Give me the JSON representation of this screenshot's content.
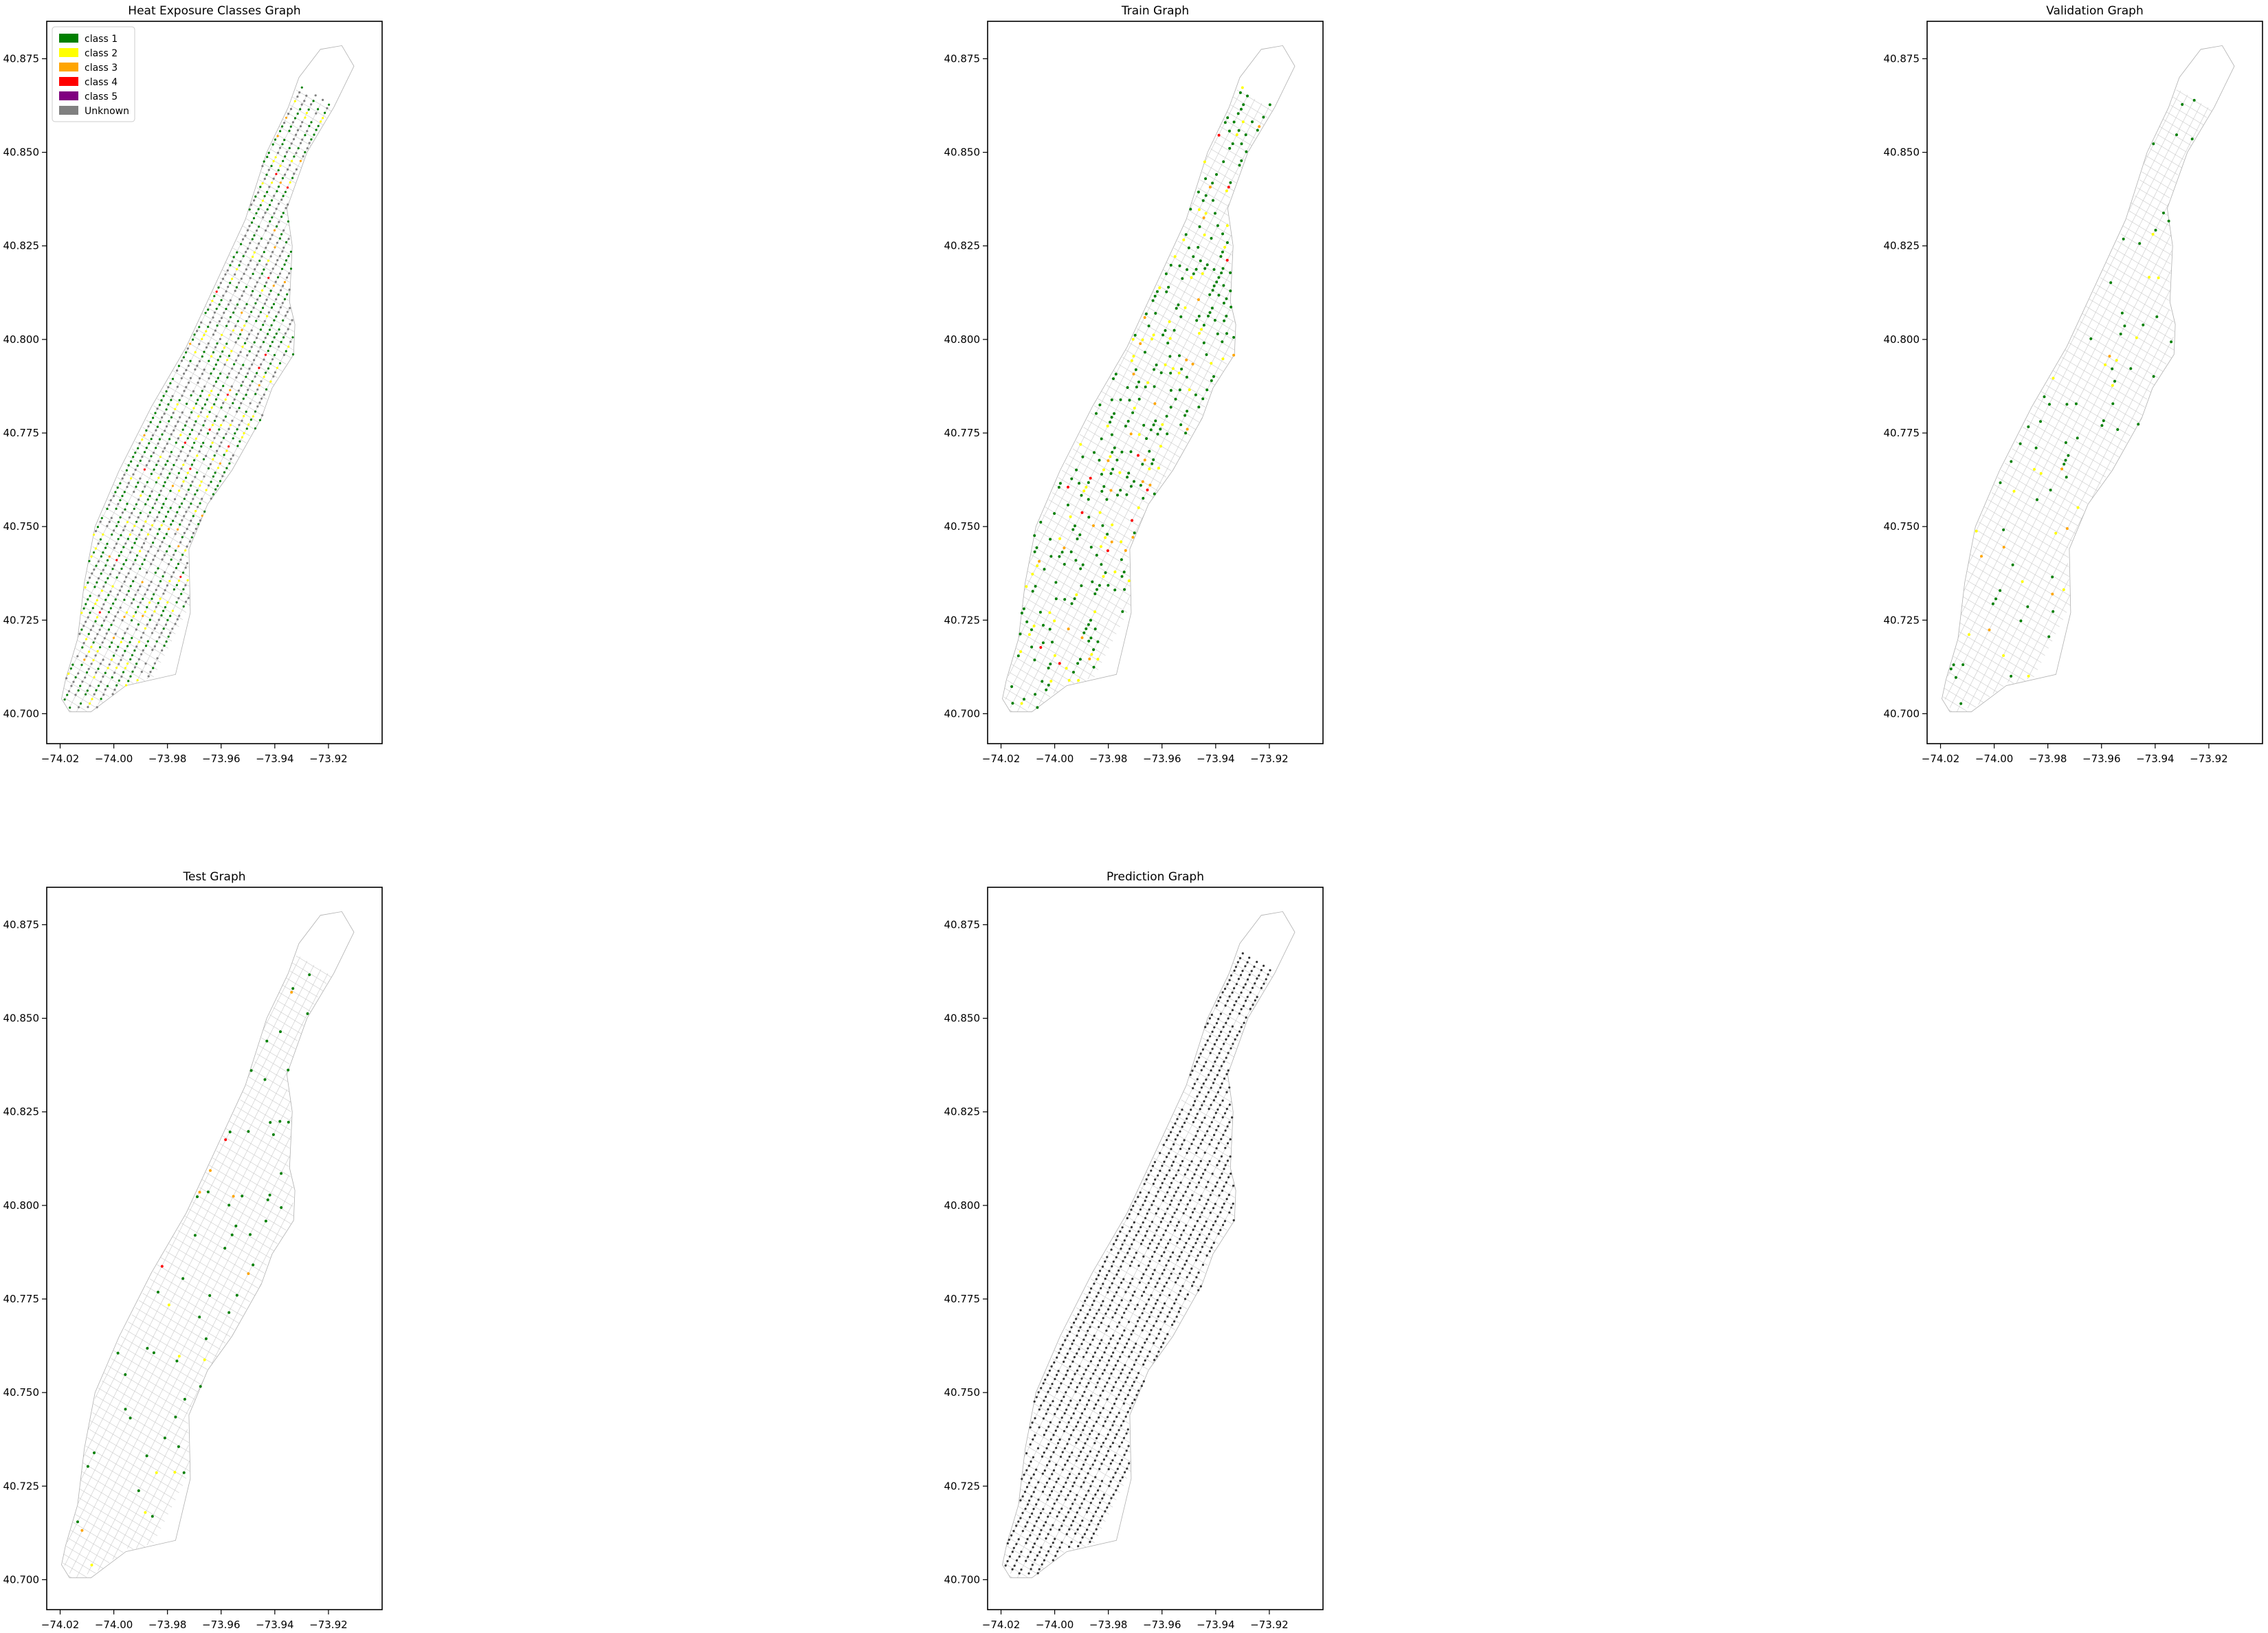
{
  "figure": {
    "background": "#ffffff",
    "node_colors": {
      "class_1": "#008000",
      "class_2": "#ffff00",
      "class_3": "#ffa500",
      "class_4": "#ff0000",
      "class_5": "#800080",
      "unknown": "#808080",
      "unlabeled": "#333333",
      "edge": "#c8c8c8"
    }
  },
  "chart_data": [
    {
      "type": "scatter",
      "title": "Heat Exposure Classes Graph",
      "xlabel": "",
      "ylabel": "",
      "xlim": [
        -74.025,
        -73.9
      ],
      "ylim": [
        40.692,
        40.885
      ],
      "xticks": [
        -74.02,
        -74.0,
        -73.98,
        -73.96,
        -73.94,
        -73.92
      ],
      "xtick_labels": [
        "−74.02",
        "−74.00",
        "−73.98",
        "−73.96",
        "−73.94",
        "−73.92"
      ],
      "yticks": [
        40.7,
        40.725,
        40.75,
        40.775,
        40.8,
        40.825,
        40.85,
        40.875
      ],
      "ytick_labels": [
        "40.700",
        "40.725",
        "40.750",
        "40.775",
        "40.800",
        "40.825",
        "40.850",
        "40.875"
      ],
      "grid": false,
      "legend": {
        "placement": "top-left",
        "entries": [
          {
            "label": "class 1",
            "color": "#008000"
          },
          {
            "label": "class 2",
            "color": "#ffff00"
          },
          {
            "label": "class 3",
            "color": "#ffa500"
          },
          {
            "label": "class 4",
            "color": "#ff0000"
          },
          {
            "label": "class 5",
            "color": "#800080"
          },
          {
            "label": "Unknown",
            "color": "#808080"
          }
        ]
      },
      "nodes": {
        "density": "high",
        "composition": [
          {
            "label": "class 1",
            "share": 0.42
          },
          {
            "label": "class 2",
            "share": 0.1
          },
          {
            "label": "class 3",
            "share": 0.02
          },
          {
            "label": "class 4",
            "share": 0.01
          },
          {
            "label": "Unknown",
            "share": 0.45
          }
        ]
      }
    },
    {
      "type": "scatter",
      "title": "Train Graph",
      "xlabel": "",
      "ylabel": "",
      "xlim": [
        -74.025,
        -73.9
      ],
      "ylim": [
        40.692,
        40.885
      ],
      "xticks": [
        -74.02,
        -74.0,
        -73.98,
        -73.96,
        -73.94,
        -73.92
      ],
      "xtick_labels": [
        "−74.02",
        "−74.00",
        "−73.98",
        "−73.96",
        "−73.94",
        "−73.92"
      ],
      "yticks": [
        40.7,
        40.725,
        40.75,
        40.775,
        40.8,
        40.825,
        40.85,
        40.875
      ],
      "ytick_labels": [
        "40.700",
        "40.725",
        "40.750",
        "40.775",
        "40.800",
        "40.825",
        "40.850",
        "40.875"
      ],
      "grid": false,
      "nodes": {
        "density": "medium",
        "composition": [
          {
            "label": "class 1",
            "share": 0.74
          },
          {
            "label": "class 2",
            "share": 0.18
          },
          {
            "label": "class 3",
            "share": 0.05
          },
          {
            "label": "class 4",
            "share": 0.03
          }
        ]
      }
    },
    {
      "type": "scatter",
      "title": "Validation Graph",
      "xlabel": "",
      "ylabel": "",
      "xlim": [
        -74.025,
        -73.9
      ],
      "ylim": [
        40.692,
        40.885
      ],
      "xticks": [
        -74.02,
        -74.0,
        -73.98,
        -73.96,
        -73.94,
        -73.92
      ],
      "xtick_labels": [
        "−74.02",
        "−74.00",
        "−73.98",
        "−73.96",
        "−73.94",
        "−73.92"
      ],
      "yticks": [
        40.7,
        40.725,
        40.75,
        40.775,
        40.8,
        40.825,
        40.85,
        40.875
      ],
      "ytick_labels": [
        "40.700",
        "40.725",
        "40.750",
        "40.775",
        "40.800",
        "40.825",
        "40.850",
        "40.875"
      ],
      "grid": false,
      "nodes": {
        "density": "sparse",
        "composition": [
          {
            "label": "class 1",
            "share": 0.8
          },
          {
            "label": "class 2",
            "share": 0.15
          },
          {
            "label": "class 3",
            "share": 0.05
          }
        ]
      }
    },
    {
      "type": "scatter",
      "title": "Test Graph",
      "xlabel": "",
      "ylabel": "",
      "xlim": [
        -74.025,
        -73.9
      ],
      "ylim": [
        40.692,
        40.885
      ],
      "xticks": [
        -74.02,
        -74.0,
        -73.98,
        -73.96,
        -73.94,
        -73.92
      ],
      "xtick_labels": [
        "−74.02",
        "−74.00",
        "−73.98",
        "−73.96",
        "−73.94",
        "−73.92"
      ],
      "yticks": [
        40.7,
        40.725,
        40.75,
        40.775,
        40.8,
        40.825,
        40.85,
        40.875
      ],
      "ytick_labels": [
        "40.700",
        "40.725",
        "40.750",
        "40.775",
        "40.800",
        "40.825",
        "40.850",
        "40.875"
      ],
      "grid": false,
      "nodes": {
        "density": "sparse",
        "composition": [
          {
            "label": "class 1",
            "share": 0.78
          },
          {
            "label": "class 2",
            "share": 0.14
          },
          {
            "label": "class 3",
            "share": 0.05
          },
          {
            "label": "class 4",
            "share": 0.03
          }
        ]
      }
    },
    {
      "type": "scatter",
      "title": "Prediction Graph",
      "xlabel": "",
      "ylabel": "",
      "xlim": [
        -74.025,
        -73.9
      ],
      "ylim": [
        40.692,
        40.885
      ],
      "xticks": [
        -74.02,
        -74.0,
        -73.98,
        -73.96,
        -73.94,
        -73.92
      ],
      "xtick_labels": [
        "−74.02",
        "−74.00",
        "−73.98",
        "−73.96",
        "−73.94",
        "−73.92"
      ],
      "yticks": [
        40.7,
        40.725,
        40.75,
        40.775,
        40.8,
        40.825,
        40.85,
        40.875
      ],
      "ytick_labels": [
        "40.700",
        "40.725",
        "40.750",
        "40.775",
        "40.800",
        "40.825",
        "40.850",
        "40.875"
      ],
      "grid": false,
      "nodes": {
        "density": "high",
        "composition": [
          {
            "label": "unlabeled",
            "share": 1.0
          }
        ]
      }
    }
  ]
}
